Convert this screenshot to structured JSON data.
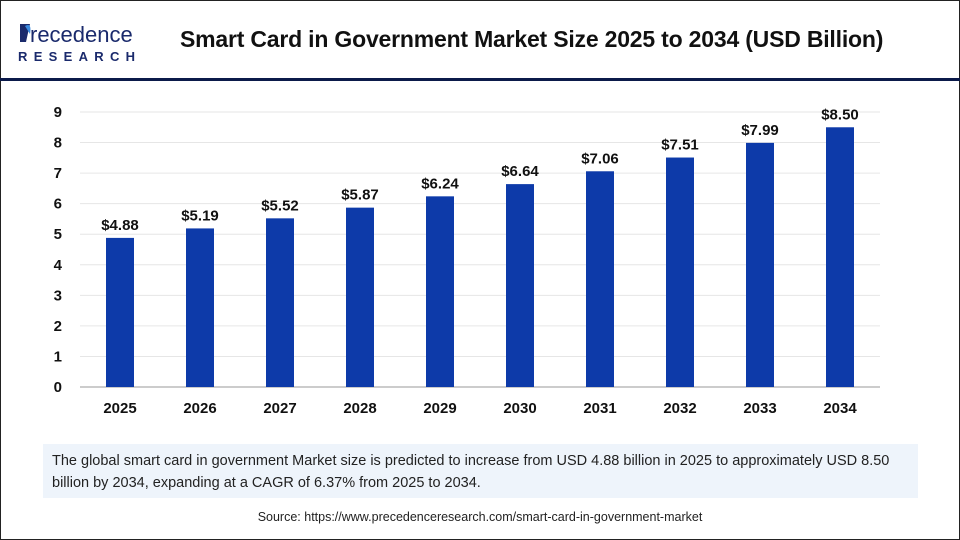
{
  "header": {
    "logo_text_top": "Precedence",
    "logo_text_bottom": "RESEARCH",
    "title": "Smart Card in Government Market Size 2025 to 2034 (USD Billion)"
  },
  "chart_data": {
    "type": "bar",
    "title": "Smart Card in Government Market Size 2025 to 2034 (USD Billion)",
    "categories": [
      "2025",
      "2026",
      "2027",
      "2028",
      "2029",
      "2030",
      "2031",
      "2032",
      "2033",
      "2034"
    ],
    "values": [
      4.88,
      5.19,
      5.52,
      5.87,
      6.24,
      6.64,
      7.06,
      7.51,
      7.99,
      8.5
    ],
    "labels": [
      "$4.88",
      "$5.19",
      "$5.52",
      "$5.87",
      "$6.24",
      "$6.64",
      "$7.06",
      "$7.51",
      "$7.99",
      "$8.50"
    ],
    "ylim": [
      0,
      9
    ],
    "yticks": [
      "0",
      "1",
      "2",
      "3",
      "4",
      "5",
      "6",
      "7",
      "8",
      "9"
    ],
    "grid": true,
    "bar_color": "#0d3aa9"
  },
  "info_text": "The global smart card in government Market size is predicted to increase from USD 4.88 billion in 2025 to approximately USD 8.50 billion by 2034, expanding at a CAGR of 6.37% from 2025 to 2034.",
  "source": "Source: https://www.precedenceresearch.com/smart-card-in-government-market"
}
